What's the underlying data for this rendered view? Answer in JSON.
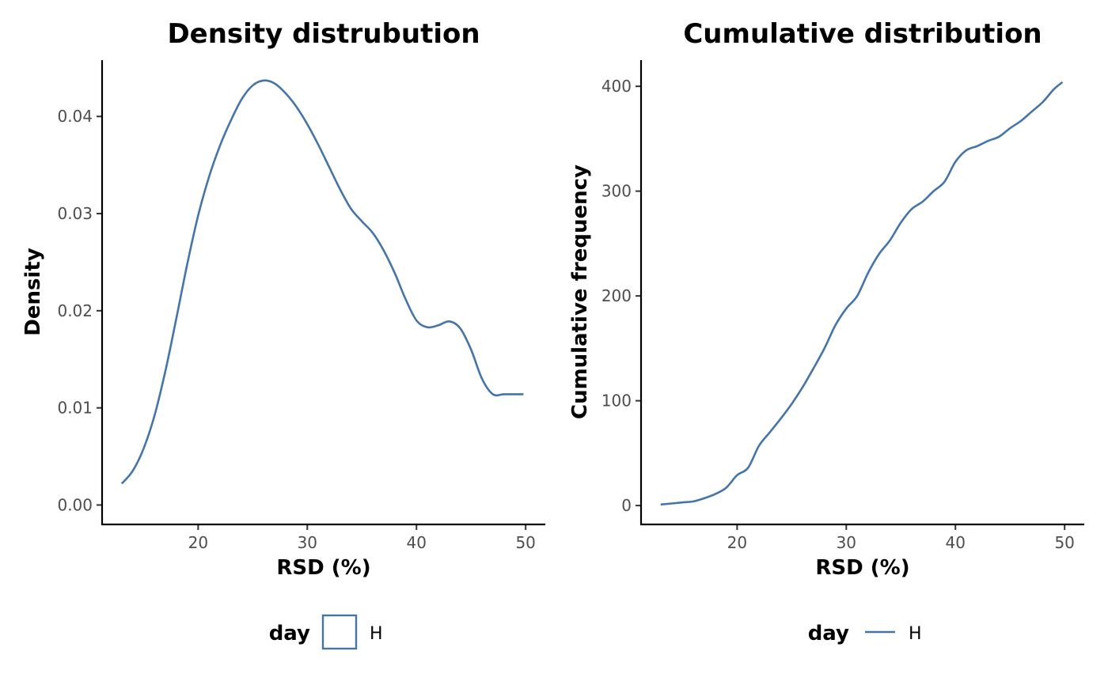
{
  "colors": {
    "series": "#4575a8",
    "axis": "#000000",
    "tick_text": "#4d4d4d"
  },
  "chart_data": [
    {
      "type": "line",
      "subtype": "density",
      "title": "Density distrubution",
      "xlabel": "RSD (%)",
      "ylabel": "Density",
      "xlim": [
        11.2,
        51.8
      ],
      "ylim": [
        -0.002,
        0.0458
      ],
      "xticks": [
        20,
        30,
        40,
        50
      ],
      "xtick_labels": [
        "20",
        "30",
        "40",
        "50"
      ],
      "yticks": [
        0.0,
        0.01,
        0.02,
        0.03,
        0.04
      ],
      "ytick_labels": [
        "0.00",
        "0.01",
        "0.02",
        "0.03",
        "0.04"
      ],
      "legend": {
        "title": "day",
        "key": "box",
        "entries": [
          "H"
        ],
        "position": "bottom"
      },
      "series": [
        {
          "name": "H",
          "x": [
            13.0,
            14.0,
            15.0,
            16.0,
            17.0,
            18.0,
            19.0,
            20.0,
            21.0,
            22.0,
            23.0,
            24.0,
            25.0,
            26.0,
            27.0,
            28.0,
            29.0,
            30.0,
            31.0,
            32.0,
            33.0,
            34.0,
            35.0,
            36.0,
            37.0,
            38.0,
            39.0,
            40.0,
            41.0,
            42.0,
            43.0,
            44.0,
            45.0,
            46.0,
            47.0,
            48.0,
            49.0,
            49.8
          ],
          "y": [
            0.0022,
            0.0035,
            0.0058,
            0.0092,
            0.0138,
            0.0192,
            0.0248,
            0.0298,
            0.0338,
            0.037,
            0.0396,
            0.0418,
            0.0432,
            0.0437,
            0.0434,
            0.0424,
            0.041,
            0.0392,
            0.0371,
            0.0348,
            0.0325,
            0.0305,
            0.0292,
            0.028,
            0.0262,
            0.0239,
            0.0212,
            0.019,
            0.0183,
            0.0185,
            0.0189,
            0.0182,
            0.016,
            0.013,
            0.0114,
            0.0114,
            0.0114,
            0.0114
          ]
        }
      ]
    },
    {
      "type": "line",
      "subtype": "cumulative",
      "title": "Cumulative distribution",
      "xlabel": "RSD (%)",
      "ylabel": "Cumulative frequency",
      "xlim": [
        11.2,
        51.8
      ],
      "ylim": [
        -18,
        425
      ],
      "xticks": [
        20,
        30,
        40,
        50
      ],
      "xtick_labels": [
        "20",
        "30",
        "40",
        "50"
      ],
      "yticks": [
        0,
        100,
        200,
        300,
        400
      ],
      "ytick_labels": [
        "0",
        "100",
        "200",
        "300",
        "400"
      ],
      "legend": {
        "title": "day",
        "key": "line",
        "entries": [
          "H"
        ],
        "position": "bottom"
      },
      "series": [
        {
          "name": "H",
          "x": [
            13.0,
            14.0,
            15.0,
            16.0,
            17.0,
            18.0,
            19.0,
            20.0,
            21.0,
            22.0,
            23.0,
            24.0,
            25.0,
            26.0,
            27.0,
            28.0,
            29.0,
            30.0,
            31.0,
            32.0,
            33.0,
            34.0,
            35.0,
            36.0,
            37.0,
            38.0,
            39.0,
            40.0,
            41.0,
            42.0,
            43.0,
            44.0,
            45.0,
            46.0,
            47.0,
            48.0,
            49.0,
            49.8
          ],
          "y": [
            1,
            2,
            3,
            4,
            7,
            11,
            17,
            29,
            36,
            57,
            70,
            83,
            97,
            113,
            131,
            150,
            172,
            188,
            200,
            222,
            240,
            253,
            270,
            283,
            290,
            300,
            309,
            328,
            339,
            343,
            348,
            352,
            360,
            367,
            376,
            385,
            397,
            404
          ]
        }
      ]
    }
  ]
}
